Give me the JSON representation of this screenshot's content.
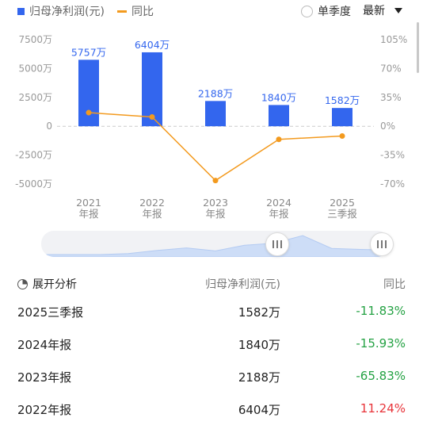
{
  "legend": {
    "bar_label": "归母净利润(元)",
    "line_label": "同比",
    "bar_color": "#3366ee",
    "line_color": "#f39a1e",
    "period_option": "单季度",
    "sort_option": "最新"
  },
  "chart_data": {
    "type": "bar+line",
    "categories": [
      "2021\n年报",
      "2022\n年报",
      "2023\n年报",
      "2024\n年报",
      "2025\n三季报"
    ],
    "series": [
      {
        "name": "归母净利润(元)",
        "type": "bar",
        "unit": "万",
        "values": [
          5757,
          6404,
          2188,
          1840,
          1582
        ],
        "labels": [
          "5757万",
          "6404万",
          "2188万",
          "1840万",
          "1582万"
        ],
        "color": "#3366ee"
      },
      {
        "name": "同比",
        "type": "line",
        "unit": "%",
        "values": [
          16.5,
          11.24,
          -65.83,
          -15.93,
          -11.83
        ],
        "color": "#f39a1e"
      }
    ],
    "left_axis": {
      "ticks": [
        7500,
        5000,
        2500,
        0,
        -2500,
        -5000
      ],
      "tick_labels": [
        "7500万",
        "5000万",
        "2500万",
        "0",
        "-2500万",
        "-5000万"
      ],
      "range": [
        -5000,
        7500
      ]
    },
    "right_axis": {
      "ticks": [
        105,
        70,
        35,
        0,
        -35,
        -70
      ],
      "tick_labels": [
        "105%",
        "70%",
        "35%",
        "0%",
        "-35%",
        "-70%"
      ],
      "range": [
        -70,
        105
      ]
    },
    "x_tick_labels": [
      [
        "2021",
        "年报"
      ],
      [
        "2022",
        "年报"
      ],
      [
        "2023",
        "年报"
      ],
      [
        "2024",
        "年报"
      ],
      [
        "2025",
        "三季报"
      ]
    ],
    "zero_line": "dashed",
    "slider_preview": [
      0.0,
      0.0,
      0.0,
      0.05,
      0.2,
      0.32,
      0.18,
      0.45,
      0.55,
      0.92,
      0.3,
      0.25,
      0.22
    ]
  },
  "table": {
    "header": {
      "analysis": "展开分析",
      "metric": "归母净利润(元)",
      "yoy": "同比"
    },
    "rows": [
      {
        "period": "2025三季报",
        "value": "1582万",
        "yoy": "-11.83%",
        "color": "#25a244"
      },
      {
        "period": "2024年报",
        "value": "1840万",
        "yoy": "-15.93%",
        "color": "#25a244"
      },
      {
        "period": "2023年报",
        "value": "2188万",
        "yoy": "-65.83%",
        "color": "#25a244"
      },
      {
        "period": "2022年报",
        "value": "6404万",
        "yoy": "11.24%",
        "color": "#e8343a"
      }
    ]
  }
}
